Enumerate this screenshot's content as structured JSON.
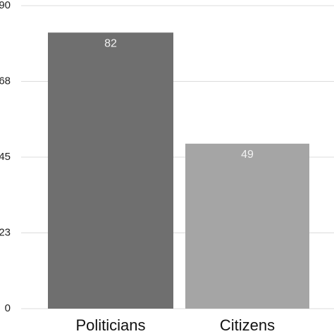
{
  "chart_data": {
    "type": "bar",
    "categories": [
      "Politicians",
      "Citizens"
    ],
    "values": [
      82,
      49
    ],
    "colors": [
      "#6f6f6f",
      "#a5a5a5"
    ],
    "ylim": [
      0,
      90
    ],
    "yticks": [
      0,
      {
        "value": 22.5,
        "label": "23"
      },
      45,
      {
        "value": 67.5,
        "label": "68"
      },
      90
    ],
    "grid": true
  }
}
